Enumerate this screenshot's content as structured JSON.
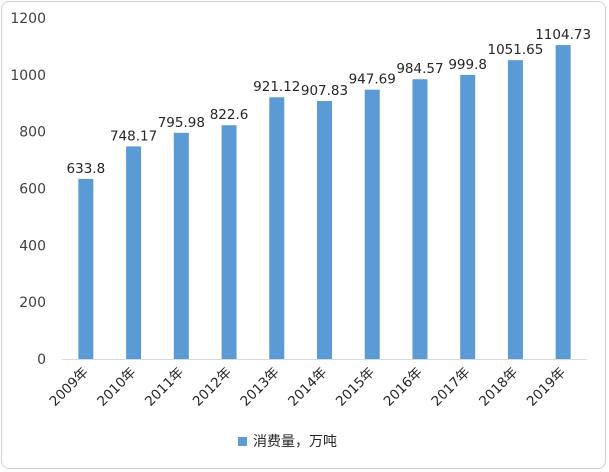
{
  "chart_data": {
    "type": "bar",
    "title": "",
    "xlabel": "",
    "ylabel": "",
    "categories": [
      "2009年",
      "2010年",
      "2011年",
      "2012年",
      "2013年",
      "2014年",
      "2015年",
      "2016年",
      "2017年",
      "2018年",
      "2019年"
    ],
    "series": [
      {
        "name": "消费量，万吨",
        "values": [
          633.8,
          748.17,
          795.98,
          822.6,
          921.12,
          907.83,
          947.69,
          984.57,
          999.8,
          1051.65,
          1104.73
        ],
        "data_labels": [
          "633.8",
          "748.17",
          "795.98",
          "822.6",
          "921.12",
          "907.83",
          "947.69",
          "984.57",
          "999.8",
          "1051.65",
          "1104.73"
        ]
      }
    ],
    "ylim": [
      0,
      1200
    ],
    "yticks": [
      0,
      200,
      400,
      600,
      800,
      1000,
      1200
    ],
    "grid": false,
    "legend_position": "bottom",
    "colors": {
      "bar": "#5b9bd5",
      "axis": "#d9d9d9"
    }
  }
}
